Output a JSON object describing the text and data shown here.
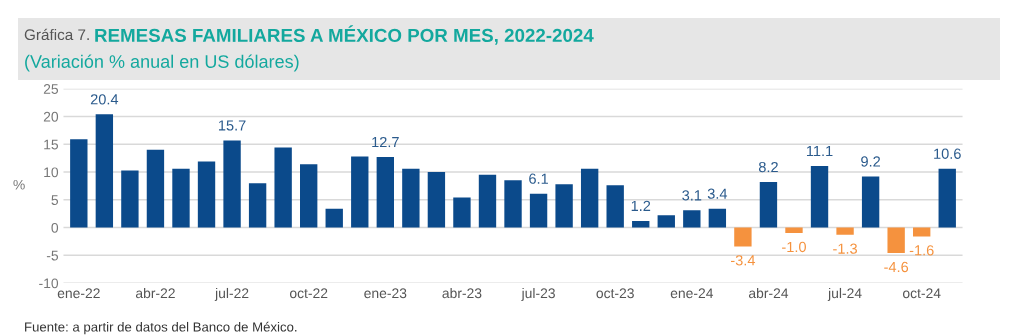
{
  "chart_data": {
    "type": "bar",
    "title": "REMESAS FAMILIARES A MÉXICO POR MES, 2022-2024",
    "subtitle": "(Variación % anual en US dólares)",
    "ylabel": "%",
    "annotations": [
      "Gráfica 7.",
      "Fuente: a partir de datos del Banco de México."
    ],
    "categories": [
      "ene-22",
      null,
      null,
      "abr-22",
      null,
      null,
      "jul-22",
      null,
      null,
      "oct-22",
      null,
      null,
      "ene-23",
      null,
      null,
      "abr-23",
      null,
      null,
      "jul-23",
      null,
      null,
      "oct-23",
      null,
      null,
      "ene-24",
      null,
      null,
      "abr-24",
      null,
      null,
      "jul-24",
      null,
      null,
      "oct-24",
      null
    ],
    "values": [
      15.9,
      20.4,
      10.3,
      14.0,
      10.6,
      11.9,
      15.7,
      8.0,
      14.4,
      11.4,
      3.4,
      12.8,
      12.7,
      10.6,
      10.0,
      5.4,
      9.5,
      8.5,
      6.1,
      7.8,
      10.6,
      7.6,
      1.2,
      2.2,
      3.1,
      3.4,
      -3.4,
      8.2,
      -1.0,
      11.1,
      -1.3,
      9.2,
      -4.6,
      -1.6,
      10.6
    ],
    "value_labels": [
      null,
      "20.4",
      null,
      null,
      null,
      null,
      "15.7",
      null,
      null,
      null,
      null,
      null,
      "12.7",
      null,
      null,
      null,
      null,
      null,
      "6.1",
      null,
      null,
      null,
      "1.2",
      null,
      "3.1",
      "3.4",
      "-3.4",
      "8.2",
      "-1.0",
      "11.1",
      "-1.3",
      "9.2",
      "-4.6",
      "-1.6",
      "10.6"
    ],
    "colors": [
      "#0b4a8b",
      "#0b4a8b",
      "#0b4a8b",
      "#0b4a8b",
      "#0b4a8b",
      "#0b4a8b",
      "#0b4a8b",
      "#0b4a8b",
      "#0b4a8b",
      "#0b4a8b",
      "#0b4a8b",
      "#0b4a8b",
      "#0b4a8b",
      "#0b4a8b",
      "#0b4a8b",
      "#0b4a8b",
      "#0b4a8b",
      "#0b4a8b",
      "#0b4a8b",
      "#0b4a8b",
      "#0b4a8b",
      "#0b4a8b",
      "#0b4a8b",
      "#0b4a8b",
      "#0b4a8b",
      "#0b4a8b",
      "#f5923e",
      "#0b4a8b",
      "#f5923e",
      "#0b4a8b",
      "#f5923e",
      "#0b4a8b",
      "#f5923e",
      "#f5923e",
      "#0b4a8b"
    ],
    "ylim": [
      -10,
      25
    ],
    "yticks": [
      -10,
      -5,
      0,
      5,
      10,
      15,
      20,
      25
    ],
    "grid": "y",
    "legend": false
  }
}
